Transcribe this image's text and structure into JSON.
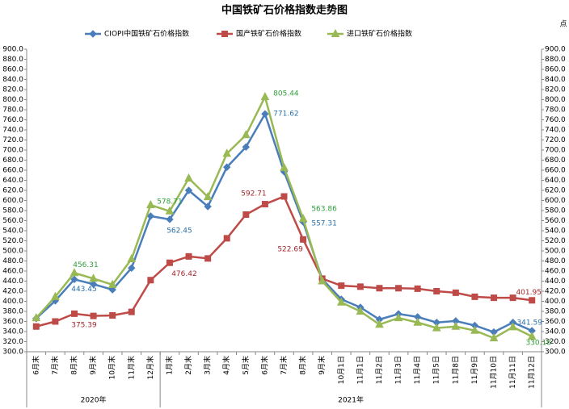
{
  "chart_data": {
    "type": "line",
    "title": "中国铁矿石价格指数走势图",
    "unit": "点",
    "category_groups": [
      {
        "label": "2020年",
        "categories": [
          "6月末",
          "7月末",
          "8月末",
          "9月末",
          "10月末",
          "11月末",
          "12月末"
        ]
      },
      {
        "label": "2021年",
        "categories": [
          "1月末",
          "2月末",
          "3月末",
          "4月末",
          "5月末",
          "6月末",
          "7月末",
          "8月末",
          "9月末",
          "10月1日",
          "11月1日",
          "11月2日",
          "11月3日",
          "11月4日",
          "11月5日",
          "11月8日",
          "11月9日",
          "11月10日",
          "11月11日",
          "11月12日"
        ]
      }
    ],
    "series": [
      {
        "name": "CIOPI中国铁矿石价格指数",
        "color": "#4a7ebb",
        "marker": "diamond",
        "label_color": "#2a6fa8",
        "values": [
          366,
          401,
          443.45,
          434,
          423,
          466,
          569,
          562.45,
          620,
          588,
          666,
          706,
          771.62,
          657,
          557.31,
          444,
          404,
          388,
          364,
          375,
          369,
          358,
          361,
          352,
          339,
          358,
          341.59
        ],
        "value_labels": [
          null,
          null,
          "443.45",
          null,
          null,
          null,
          null,
          "562.45",
          null,
          null,
          null,
          null,
          "771.62",
          null,
          "557.31",
          null,
          null,
          null,
          null,
          null,
          null,
          null,
          null,
          null,
          null,
          null,
          "341.59"
        ]
      },
      {
        "name": "国产铁矿石价格指数",
        "color": "#be4b48",
        "marker": "square",
        "label_color": "#a3262b",
        "values": [
          350,
          360,
          375.39,
          371,
          372,
          379,
          442,
          476.42,
          489,
          485,
          525,
          572,
          592.71,
          608,
          522.69,
          445,
          431,
          429,
          426,
          426,
          425,
          420,
          417,
          409,
          407,
          407,
          401.95
        ],
        "value_labels": [
          null,
          null,
          "375.39",
          null,
          null,
          null,
          null,
          "476.42",
          null,
          null,
          null,
          null,
          "592.71",
          null,
          "522.69",
          null,
          null,
          null,
          null,
          null,
          null,
          null,
          null,
          null,
          null,
          null,
          "401.95"
        ]
      },
      {
        "name": "进口铁矿石价格指数",
        "color": "#98b954",
        "marker": "triangle",
        "label_color": "#2e9e3a",
        "values": [
          367,
          409,
          456.31,
          445,
          433,
          484,
          591,
          578.71,
          644,
          607,
          693,
          730,
          805.44,
          665,
          563.86,
          440,
          398,
          380,
          354,
          367,
          358,
          347,
          350,
          342,
          327,
          349,
          330.18
        ],
        "value_labels": [
          null,
          null,
          "456.31",
          null,
          null,
          null,
          null,
          "578.71",
          null,
          null,
          null,
          null,
          "805.44",
          null,
          "563.86",
          null,
          null,
          null,
          null,
          null,
          null,
          null,
          null,
          null,
          null,
          null,
          "330.18"
        ]
      }
    ],
    "ylim": [
      300,
      900
    ],
    "yticks": [
      {
        "value": 300,
        "label": "300.0"
      },
      {
        "value": 320,
        "label": "320.0"
      },
      {
        "value": 340,
        "label": "340.0"
      },
      {
        "value": 360,
        "label": "360.0"
      },
      {
        "value": 380,
        "label": "380.0"
      },
      {
        "value": 400,
        "label": "400.0"
      },
      {
        "value": 420,
        "label": "420.0"
      },
      {
        "value": 440,
        "label": "440.0"
      },
      {
        "value": 460,
        "label": "460.0"
      },
      {
        "value": 480,
        "label": "480.0"
      },
      {
        "value": 500,
        "label": "500.0"
      },
      {
        "value": 520,
        "label": "520.0"
      },
      {
        "value": 540,
        "label": "540.0"
      },
      {
        "value": 560,
        "label": "560.0"
      },
      {
        "value": 580,
        "label": "580.0"
      },
      {
        "value": 600,
        "label": "600.0"
      },
      {
        "value": 620,
        "label": "620.0"
      },
      {
        "value": 640,
        "label": "640.0"
      },
      {
        "value": 660,
        "label": "660.0"
      },
      {
        "value": 680,
        "label": "680.0"
      },
      {
        "value": 700,
        "label": "700.0"
      },
      {
        "value": 720,
        "label": "720.0"
      },
      {
        "value": 740,
        "label": "740.0"
      },
      {
        "value": 760,
        "label": "760.0"
      },
      {
        "value": 780,
        "label": "780.0"
      },
      {
        "value": 800,
        "label": "800.0"
      },
      {
        "value": 820,
        "label": "820.0"
      },
      {
        "value": 840,
        "label": "840.0"
      },
      {
        "value": 860,
        "label": "860.0"
      },
      {
        "value": 880,
        "label": "880.0"
      },
      {
        "value": 900,
        "label": "900.0"
      }
    ],
    "mirror_y_axis": true,
    "grid": false,
    "legend": "top"
  }
}
